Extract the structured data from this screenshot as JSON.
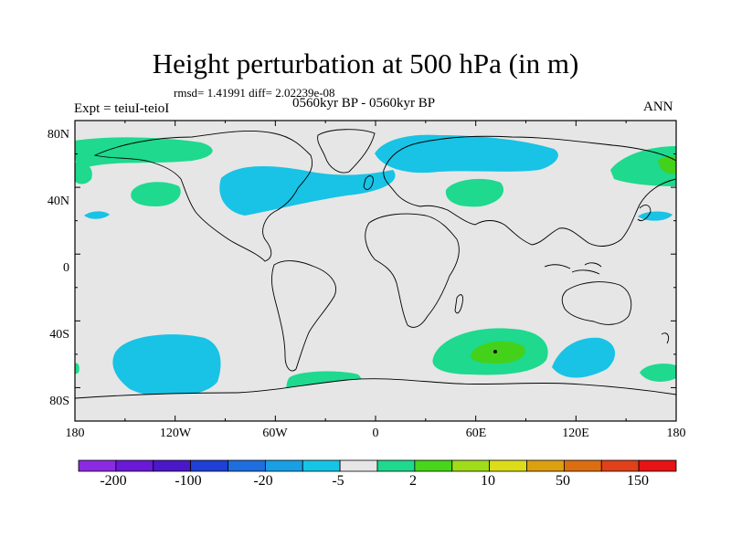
{
  "title": "Height perturbation at 500 hPa (in m)",
  "stats": "rmsd= 1.41991 diff= 2.02239e-08",
  "period": "0560kyr BP - 0560kyr BP",
  "experiment": "Expt = teiuI-teioI",
  "season": "ANN",
  "lat_ticks": [
    "80N",
    "40N",
    "0",
    "40S",
    "80S"
  ],
  "lon_ticks": [
    "180",
    "120W",
    "60W",
    "0",
    "60E",
    "120E",
    "180"
  ],
  "colorbar": {
    "colors": [
      "#8a2be2",
      "#6a19d6",
      "#4a18c8",
      "#1f3fd6",
      "#1e6ee0",
      "#189fe6",
      "#16c5e6",
      "#e6e6e6",
      "#1ed98e",
      "#47d61a",
      "#a0dc19",
      "#dcdc19",
      "#dca010",
      "#dc6e10",
      "#e0401a",
      "#e61414"
    ],
    "labels": [
      "-200",
      "-100",
      "-20",
      "-5",
      "2",
      "10",
      "50",
      "150"
    ]
  },
  "colors": {
    "background": "#e6e6e6",
    "negative_fill": "#18c3e5",
    "positive_fill": "#1ed98e",
    "positive_strong": "#44d11a",
    "coast": "#000000"
  }
}
